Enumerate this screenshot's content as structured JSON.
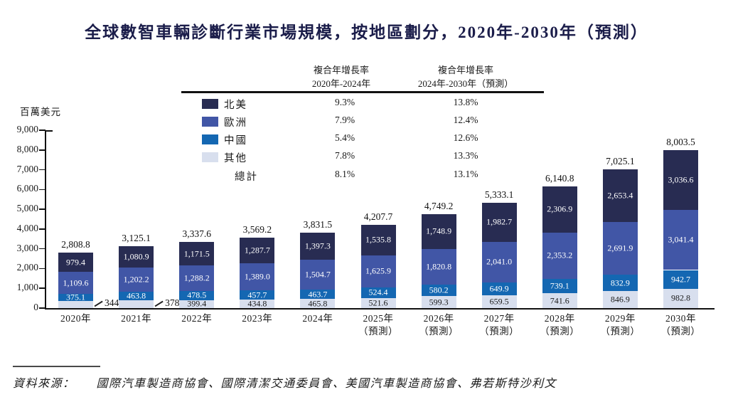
{
  "title": "全球數智車輛診斷行業市場規模，按地區劃分，2020年-2030年（預測）",
  "cagr_table": {
    "col1_header_line1": "複合年增長率",
    "col1_header_line2": "2020年-2024年",
    "col2_header_line1": "複合年增長率",
    "col2_header_line2": "2024年-2030年（預測）",
    "rows": [
      {
        "label": "北美",
        "color": "#282c52",
        "cagr_2020_2024": "9.3%",
        "cagr_2024_2030": "13.8%"
      },
      {
        "label": "歐洲",
        "color": "#4156a6",
        "cagr_2020_2024": "7.9%",
        "cagr_2024_2030": "12.4%"
      },
      {
        "label": "中國",
        "color": "#1467b2",
        "cagr_2020_2024": "5.4%",
        "cagr_2024_2030": "12.6%"
      },
      {
        "label": "其他",
        "color": "#d8dfee",
        "cagr_2020_2024": "7.8%",
        "cagr_2024_2030": "13.3%"
      }
    ],
    "total_label": "總計",
    "total_cagr_2020_2024": "8.1%",
    "total_cagr_2024_2030": "13.1%"
  },
  "chart_data": {
    "type": "bar",
    "stacked": true,
    "title": "全球數智車輛診斷行業市場規模，按地區劃分，2020年-2030年（預測）",
    "ylabel": "百萬美元",
    "xlabel": "",
    "ylim": [
      0,
      9000
    ],
    "grid": false,
    "legend_position": "upper-left",
    "ytick_labels": [
      "0",
      "1,000",
      "2,000",
      "3,000",
      "4,000",
      "5,000",
      "6,000",
      "7,000",
      "8,000",
      "9,000"
    ],
    "categories": [
      {
        "year": "2020年",
        "sublabel": ""
      },
      {
        "year": "2021年",
        "sublabel": ""
      },
      {
        "year": "2022年",
        "sublabel": ""
      },
      {
        "year": "2023年",
        "sublabel": ""
      },
      {
        "year": "2024年",
        "sublabel": ""
      },
      {
        "year": "2025年",
        "sublabel": "（預測）"
      },
      {
        "year": "2026年",
        "sublabel": "（預測）"
      },
      {
        "year": "2027年",
        "sublabel": "（預測）"
      },
      {
        "year": "2028年",
        "sublabel": "（預測）"
      },
      {
        "year": "2029年",
        "sublabel": "（預測）"
      },
      {
        "year": "2030年",
        "sublabel": "（預測）"
      }
    ],
    "totals": [
      "2,808.8",
      "3,125.1",
      "3,337.6",
      "3,569.2",
      "3,831.5",
      "4,207.7",
      "4,749.2",
      "5,333.1",
      "6,140.8",
      "7,025.1",
      "8,003.5"
    ],
    "series": [
      {
        "name": "其他",
        "color": "#d8dfee",
        "label_color": "#1a1a1a",
        "values": [
          "344.7",
          "378.2",
          "399.4",
          "434.8",
          "465.8",
          "521.6",
          "599.3",
          "659.5",
          "741.6",
          "846.9",
          "982.8"
        ]
      },
      {
        "name": "中國",
        "color": "#1467b2",
        "label_color": "#ffffff",
        "values": [
          "375.1",
          "463.8",
          "478.5",
          "457.7",
          "463.7",
          "524.4",
          "580.2",
          "649.9",
          "739.1",
          "832.9",
          "942.7"
        ]
      },
      {
        "name": "歐洲",
        "color": "#4156a6",
        "label_color": "#ffffff",
        "values": [
          "1,109.6",
          "1,202.2",
          "1,288.2",
          "1,389.0",
          "1,504.7",
          "1,625.9",
          "1,820.8",
          "2,041.0",
          "2,353.2",
          "2,691.9",
          "3,041.4"
        ]
      },
      {
        "name": "北美",
        "color": "#282c52",
        "label_color": "#ffffff",
        "values": [
          "979.4",
          "1,080.9",
          "1,171.5",
          "1,287.7",
          "1,397.3",
          "1,535.8",
          "1,748.9",
          "1,982.7",
          "2,306.9",
          "2,653.4",
          "3,036.6"
        ]
      }
    ],
    "outside_labels": [
      {
        "category": 0,
        "series": 0
      },
      {
        "category": 1,
        "series": 0
      }
    ]
  },
  "source": {
    "label": "資料來源：",
    "text": "國際汽車製造商協會、國際清潔交通委員會、美國汽車製造商協會、弗若斯特沙利文"
  }
}
